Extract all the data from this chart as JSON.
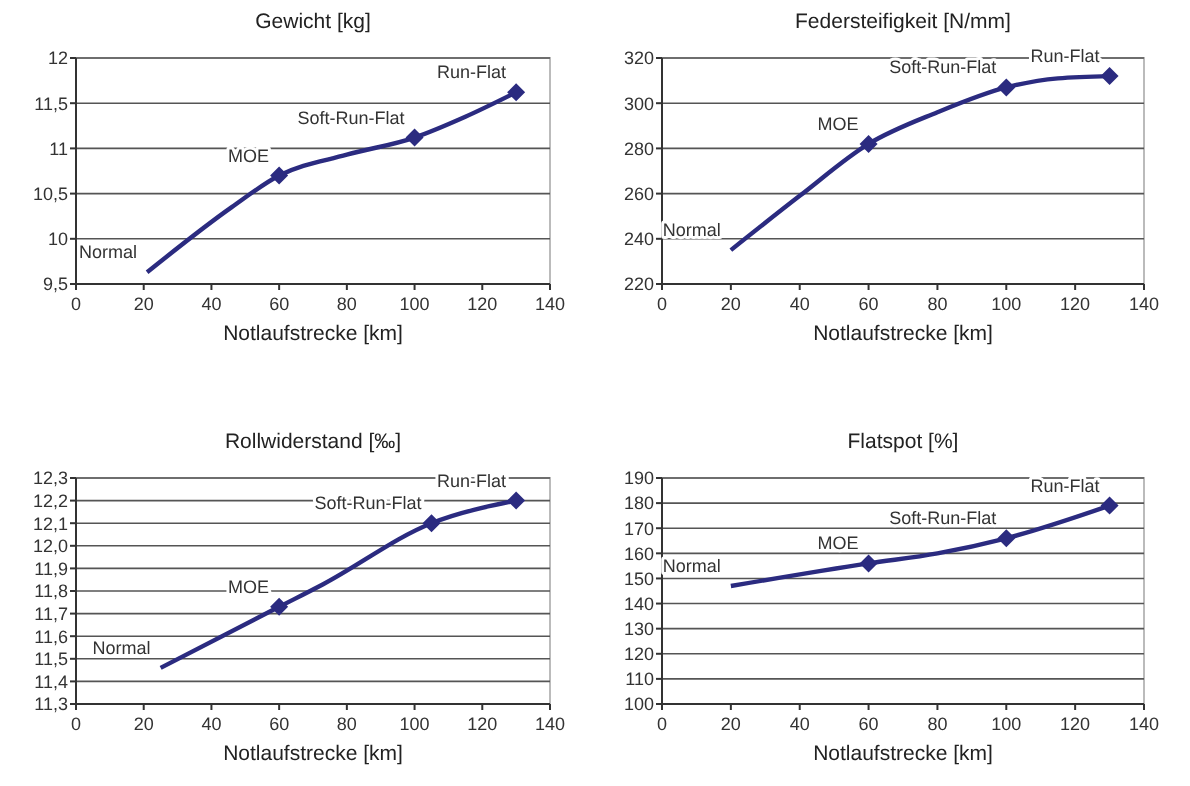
{
  "chart_data": [
    {
      "type": "line",
      "title": "Gewicht [kg]",
      "xlabel": "Notlaufstrecke [km]",
      "xlim": [
        0,
        140
      ],
      "xticks": [
        0,
        20,
        40,
        60,
        80,
        100,
        120,
        140
      ],
      "ylim": [
        9.5,
        12
      ],
      "yticks": [
        {
          "value": 9.5,
          "label": "9,5"
        },
        10,
        {
          "value": 10.5,
          "label": "10,5"
        },
        11,
        {
          "value": 11.5,
          "label": "11,5"
        },
        12
      ],
      "grid": "y",
      "line_style": "solid",
      "series": [
        {
          "type": "line",
          "color": "#2b2b80",
          "marker": "none",
          "x": [
            21,
            46,
            60,
            80,
            100,
            115,
            130
          ],
          "values": [
            9.63,
            10.35,
            10.7,
            10.93,
            11.12,
            11.35,
            11.62
          ]
        },
        {
          "type": "scatter",
          "color": "#2b2b80",
          "marker": "diamond",
          "x": [
            60,
            100,
            130
          ],
          "values": [
            10.7,
            11.12,
            11.62
          ]
        }
      ],
      "annotations": [
        {
          "text": "Normal",
          "x": 21,
          "y": 9.63
        },
        {
          "text": "MOE",
          "x": 60,
          "y": 10.7
        },
        {
          "text": "Soft-Run-Flat",
          "x": 100,
          "y": 11.12
        },
        {
          "text": "Run-Flat",
          "x": 130,
          "y": 11.62
        }
      ]
    },
    {
      "type": "line",
      "title": "Federsteifigkeit [N/mm]",
      "xlabel": "Notlaufstrecke [km]",
      "xlim": [
        0,
        140
      ],
      "xticks": [
        0,
        20,
        40,
        60,
        80,
        100,
        120,
        140
      ],
      "ylim": [
        220,
        320
      ],
      "yticks": [
        220,
        240,
        260,
        280,
        300,
        320
      ],
      "grid": "y",
      "line_style": "solid",
      "series": [
        {
          "type": "line",
          "color": "#2b2b80",
          "marker": "none",
          "x": [
            20,
            40,
            60,
            80,
            100,
            115,
            130
          ],
          "values": [
            235,
            259,
            282,
            296,
            307,
            311,
            312
          ]
        },
        {
          "type": "scatter",
          "color": "#2b2b80",
          "marker": "diamond",
          "x": [
            60,
            100,
            130
          ],
          "values": [
            282,
            307,
            312
          ]
        }
      ],
      "annotations": [
        {
          "text": "Normal",
          "x": 20,
          "y": 235
        },
        {
          "text": "MOE",
          "x": 60,
          "y": 282
        },
        {
          "text": "Soft-Run-Flat",
          "x": 100,
          "y": 307
        },
        {
          "text": "Run-Flat",
          "x": 130,
          "y": 312
        }
      ]
    },
    {
      "type": "line",
      "title": "Rollwiderstand [‰]",
      "xlabel": "Notlaufstrecke [km]",
      "xlim": [
        0,
        140
      ],
      "xticks": [
        0,
        20,
        40,
        60,
        80,
        100,
        120,
        140
      ],
      "ylim": [
        11.3,
        12.3
      ],
      "yticks": [
        {
          "value": 11.3,
          "label": "11,3"
        },
        {
          "value": 11.4,
          "label": "11,4"
        },
        {
          "value": 11.5,
          "label": "11,5"
        },
        {
          "value": 11.6,
          "label": "11,6"
        },
        {
          "value": 11.7,
          "label": "11,7"
        },
        {
          "value": 11.8,
          "label": "11,8"
        },
        {
          "value": 11.9,
          "label": "11,9"
        },
        {
          "value": 12.0,
          "label": "12,0"
        },
        {
          "value": 12.1,
          "label": "12,1"
        },
        {
          "value": 12.2,
          "label": "12,2"
        },
        {
          "value": 12.3,
          "label": "12,3"
        }
      ],
      "grid": "y",
      "line_style": "solid",
      "series": [
        {
          "type": "line",
          "color": "#2b2b80",
          "marker": "none",
          "x": [
            25,
            60,
            73,
            105,
            130
          ],
          "values": [
            11.46,
            11.73,
            11.83,
            12.1,
            12.2
          ]
        },
        {
          "type": "scatter",
          "color": "#2b2b80",
          "marker": "diamond",
          "x": [
            60,
            105,
            130
          ],
          "values": [
            11.73,
            12.1,
            12.2
          ]
        }
      ],
      "annotations": [
        {
          "text": "Normal",
          "x": 25,
          "y": 11.46
        },
        {
          "text": "MOE",
          "x": 60,
          "y": 11.73
        },
        {
          "text": "Soft-Run-Flat",
          "x": 105,
          "y": 12.1
        },
        {
          "text": "Run-Flat",
          "x": 130,
          "y": 12.2
        }
      ]
    },
    {
      "type": "line",
      "title": "Flatspot [%]",
      "xlabel": "Notlaufstrecke [km]",
      "xlim": [
        0,
        140
      ],
      "xticks": [
        0,
        20,
        40,
        60,
        80,
        100,
        120,
        140
      ],
      "ylim": [
        100,
        190
      ],
      "yticks": [
        100,
        110,
        120,
        130,
        140,
        150,
        160,
        170,
        180,
        190
      ],
      "grid": "y",
      "line_style": "solid",
      "series": [
        {
          "type": "line",
          "color": "#2b2b80",
          "marker": "none",
          "x": [
            20,
            60,
            80,
            100,
            130
          ],
          "values": [
            147,
            156,
            160,
            166,
            179
          ]
        },
        {
          "type": "scatter",
          "color": "#2b2b80",
          "marker": "diamond",
          "x": [
            60,
            100,
            130
          ],
          "values": [
            156,
            166,
            179
          ]
        }
      ],
      "annotations": [
        {
          "text": "Normal",
          "x": 20,
          "y": 147
        },
        {
          "text": "MOE",
          "x": 60,
          "y": 156
        },
        {
          "text": "Soft-Run-Flat",
          "x": 100,
          "y": 166
        },
        {
          "text": "Run-Flat",
          "x": 130,
          "y": 179
        }
      ]
    }
  ]
}
